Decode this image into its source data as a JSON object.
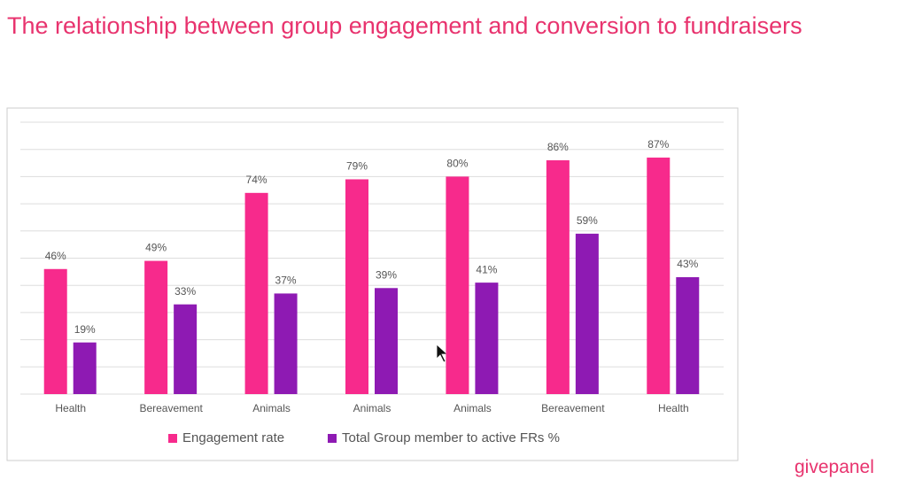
{
  "chart_data": {
    "type": "bar",
    "title": "The relationship between group engagement and conversion to fundraisers",
    "categories": [
      "Health",
      "Bereavement",
      "Animals",
      "Animals",
      "Animals",
      "Bereavement",
      "Health"
    ],
    "series": [
      {
        "name": "Engagement rate",
        "color": "#f72a8c",
        "values": [
          46,
          49,
          74,
          79,
          80,
          86,
          87
        ],
        "value_labels": [
          "46%",
          "49%",
          "74%",
          "79%",
          "80%",
          "86%",
          "87%"
        ]
      },
      {
        "name": "Total Group member to active FRs %",
        "color": "#8e1ab3",
        "values": [
          19,
          33,
          37,
          39,
          41,
          59,
          43
        ],
        "value_labels": [
          "19%",
          "33%",
          "37%",
          "39%",
          "41%",
          "59%",
          "43%"
        ]
      }
    ],
    "ylim": [
      0,
      100
    ],
    "yticks": [
      0,
      10,
      20,
      30,
      40,
      50,
      60,
      70,
      80,
      90,
      100
    ],
    "grid": true,
    "legend": "bottom"
  },
  "brand": "givepanel"
}
